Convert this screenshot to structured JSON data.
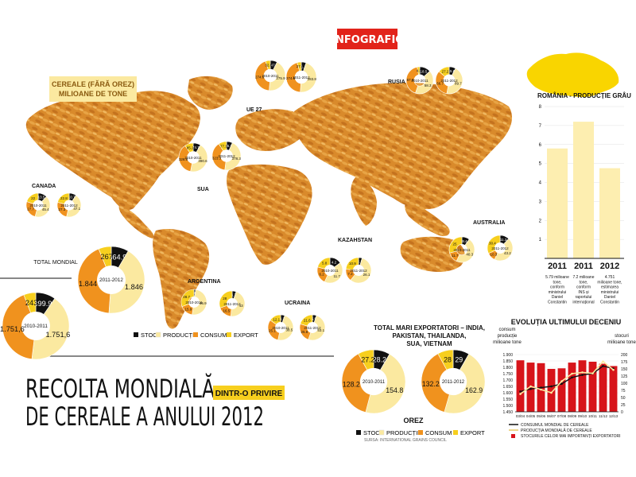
{
  "header": {
    "badge": "INFOGRAFIC",
    "map_title_1": "CEREALE (FĂRĂ OREZ)",
    "map_title_2": "MILIOANE DE TONE",
    "main_title_1": "RECOLTA MONDIALĂ",
    "main_title_2": "DE CEREALE A ANULUI 2012",
    "subtitle_badge": "DINTR-O PRIVIRE",
    "source": "SURSA: INTERNATIONAL GRAINS COUNCIL"
  },
  "legend": {
    "stoc": "STOC",
    "productie": "PRODUCȚIE",
    "consum": "CONSUM",
    "export": "EXPORT"
  },
  "colors": {
    "stoc": "#111111",
    "productie": "#fbe9a0",
    "consum": "#f0921e",
    "export": "#f7cf1e",
    "badge_red": "#e2231a",
    "romania_yellow": "#f9d500",
    "bar_fill": "#fdeeb0",
    "decade_bar": "#d7141a",
    "decade_line_consum": "#111111",
    "decade_line_productie": "#fbe9a0",
    "decade_line_stoc": "#f0a81e"
  },
  "chart_data": [
    {
      "type": "pie",
      "title": "TOTAL MONDIAL",
      "charts": [
        {
          "period": "2010-2011",
          "slices": [
            {
              "key": "stoc",
              "value": 399.9,
              "label": "399.9"
            },
            {
              "key": "productie",
              "value": 1751.6,
              "label": "1.751,6"
            },
            {
              "key": "consum",
              "value": 1751.6,
              "label": "1.751,6"
            },
            {
              "key": "export",
              "value": 243,
              "label": "243"
            }
          ]
        },
        {
          "period": "2011-2012",
          "slices": [
            {
              "key": "stoc",
              "value": 364.9,
              "label": "364.9"
            },
            {
              "key": "productie",
              "value": 1846,
              "label": "1.846"
            },
            {
              "key": "consum",
              "value": 1844,
              "label": "1.844"
            },
            {
              "key": "export",
              "value": 267,
              "label": "267"
            }
          ]
        }
      ]
    },
    {
      "type": "pie",
      "title": "CANADA",
      "charts": [
        {
          "period": "2010-2011",
          "slices": [
            {
              "key": "stoc",
              "value": 13.5,
              "label": "13.5"
            },
            {
              "key": "productie",
              "value": 45.4,
              "label": "45.4"
            },
            {
              "key": "consum",
              "value": 27.7,
              "label": "27.7"
            },
            {
              "key": "export",
              "value": 22,
              "label": "22"
            }
          ]
        },
        {
          "period": "2011-2012",
          "slices": [
            {
              "key": "stoc",
              "value": 10.7,
              "label": "10.7"
            },
            {
              "key": "productie",
              "value": 47.1,
              "label": "47.1"
            },
            {
              "key": "consum",
              "value": 27.3,
              "label": "27.3"
            },
            {
              "key": "export",
              "value": 22.8,
              "label": "22.8"
            }
          ]
        }
      ]
    },
    {
      "type": "pie",
      "title": "SUA",
      "charts": [
        {
          "period": "2010-2011",
          "slices": [
            {
              "key": "stoc",
              "value": 74.7,
              "label": "74.7"
            },
            {
              "key": "productie",
              "value": 390.6,
              "label": "390.6"
            },
            {
              "key": "consum",
              "value": 326.8,
              "label": "326.8"
            },
            {
              "key": "export",
              "value": 85.2,
              "label": "85.2"
            }
          ]
        },
        {
          "period": "2011-2012",
          "slices": [
            {
              "key": "stoc",
              "value": 55.7,
              "label": "55.7"
            },
            {
              "key": "productie",
              "value": 378.3,
              "label": "378.3"
            },
            {
              "key": "consum",
              "value": 323.3,
              "label": "323.3"
            },
            {
              "key": "export",
              "value": 77.1,
              "label": "77.1"
            }
          ]
        }
      ]
    },
    {
      "type": "pie",
      "title": "UE 27",
      "charts": [
        {
          "period": "2010-2011",
          "slices": [
            {
              "key": "stoc",
              "value": 47,
              "label": "47"
            },
            {
              "key": "productie",
              "value": 275.9,
              "label": "275.9"
            },
            {
              "key": "consum",
              "value": 274.6,
              "label": "274.6"
            },
            {
              "key": "export",
              "value": 32.8,
              "label": "32.8"
            }
          ]
        },
        {
          "period": "2011-2012",
          "slices": [
            {
              "key": "stoc",
              "value": 31.7,
              "label": "31.7"
            },
            {
              "key": "productie",
              "value": 283.8,
              "label": "283.8"
            },
            {
              "key": "consum",
              "value": 274.5,
              "label": "274.5"
            },
            {
              "key": "export",
              "value": 27.4,
              "label": "27.4"
            }
          ]
        }
      ]
    },
    {
      "type": "pie",
      "title": "RUSIA",
      "charts": [
        {
          "period": "2010-2011",
          "slices": [
            {
              "key": "stoc",
              "value": 18.5,
              "label": "18.5"
            },
            {
              "key": "productie",
              "value": 58.3,
              "label": "58.3"
            },
            {
              "key": "consum",
              "value": 57.9,
              "label": "57.9"
            },
            {
              "key": "export",
              "value": 4.3,
              "label": "4.3"
            }
          ]
        },
        {
          "period": "2011-2012",
          "slices": [
            {
              "key": "stoc",
              "value": 15.6,
              "label": "15.6"
            },
            {
              "key": "productie",
              "value": 89.7,
              "label": "89.7"
            },
            {
              "key": "consum",
              "value": 66.7,
              "label": "66.7"
            },
            {
              "key": "export",
              "value": 27.2,
              "label": "27.2"
            }
          ]
        }
      ]
    },
    {
      "type": "pie",
      "title": "ARGENTINA",
      "charts": [
        {
          "period": "2010-2011",
          "slices": [
            {
              "key": "stoc",
              "value": 2,
              "label": "2"
            },
            {
              "key": "productie",
              "value": 46.9,
              "label": "46.9"
            },
            {
              "key": "consum",
              "value": 15.9,
              "label": "15.9"
            },
            {
              "key": "export",
              "value": 28.7,
              "label": "28.7"
            }
          ]
        },
        {
          "period": "2011-2012",
          "slices": [
            {
              "key": "stoc",
              "value": 4.7,
              "label": "4.7"
            },
            {
              "key": "productie",
              "value": 43,
              "label": "43"
            },
            {
              "key": "consum",
              "value": 16.5,
              "label": "16.5"
            },
            {
              "key": "export",
              "value": 28,
              "label": "28"
            }
          ]
        }
      ]
    },
    {
      "type": "pie",
      "title": "UCRAINA",
      "charts": [
        {
          "period": "2010-2011",
          "slices": [
            {
              "key": "stoc",
              "value": 4.2,
              "label": "4.2"
            },
            {
              "key": "productie",
              "value": 38.5,
              "label": "38.5"
            },
            {
              "key": "consum",
              "value": 25.1,
              "label": "25.1"
            },
            {
              "key": "export",
              "value": 12.1,
              "label": "12.1"
            }
          ]
        },
        {
          "period": "2011-2012",
          "slices": [
            {
              "key": "stoc",
              "value": 5.5,
              "label": "5.5"
            },
            {
              "key": "productie",
              "value": 53.1,
              "label": "53.1"
            },
            {
              "key": "consum",
              "value": 25.8,
              "label": "25.8"
            },
            {
              "key": "export",
              "value": 21.6,
              "label": "21.6"
            }
          ]
        }
      ]
    },
    {
      "type": "pie",
      "title": "KAZAHSTAN",
      "charts": [
        {
          "period": "2010-2011",
          "slices": [
            {
              "key": "stoc",
              "value": 4.2,
              "label": "4.2"
            },
            {
              "key": "productie",
              "value": 11.7,
              "label": "11.7"
            },
            {
              "key": "consum",
              "value": 6.2,
              "label": "6.2"
            },
            {
              "key": "export",
              "value": 5.8,
              "label": "5.8"
            }
          ]
        },
        {
          "period": "2011-2012",
          "slices": [
            {
              "key": "stoc",
              "value": 2.1,
              "label": "2.1"
            },
            {
              "key": "productie",
              "value": 26.1,
              "label": "26.1"
            },
            {
              "key": "consum",
              "value": 7.2,
              "label": "7.2"
            },
            {
              "key": "export",
              "value": 10.9,
              "label": "10.9"
            }
          ]
        }
      ]
    },
    {
      "type": "pie",
      "title": "AUSTRALIA",
      "charts": [
        {
          "period": "2010-2011",
          "slices": [
            {
              "key": "stoc",
              "value": 8.4,
              "label": "8.4"
            },
            {
              "key": "productie",
              "value": 40.3,
              "label": "40.3"
            },
            {
              "key": "consum",
              "value": 11.7,
              "label": "11.7"
            },
            {
              "key": "export",
              "value": 25,
              "label": "25"
            }
          ]
        },
        {
          "period": "2011-2012",
          "slices": [
            {
              "key": "stoc",
              "value": 11.3,
              "label": "11.3"
            },
            {
              "key": "productie",
              "value": 43.2,
              "label": "43.2"
            },
            {
              "key": "consum",
              "value": 10.3,
              "label": "10.3"
            },
            {
              "key": "export",
              "value": 30.4,
              "label": "30.4"
            }
          ]
        }
      ]
    },
    {
      "type": "pie",
      "title": "TOTAL MARI EXPORTATORI – INDIA, PAKISTAN, THAILANDA, SUA, VIETNAM",
      "subtitle": "OREZ",
      "charts": [
        {
          "period": "2010-2011",
          "slices": [
            {
              "key": "stoc",
              "value": 28.2,
              "label": "28.2"
            },
            {
              "key": "productie",
              "value": 154.8,
              "label": "154.8"
            },
            {
              "key": "consum",
              "value": 128.2,
              "label": "128.2"
            },
            {
              "key": "export",
              "value": 27.2,
              "label": "27.2"
            }
          ]
        },
        {
          "period": "2011-2012",
          "slices": [
            {
              "key": "stoc",
              "value": 29,
              "label": "29"
            },
            {
              "key": "productie",
              "value": 162.9,
              "label": "162.9"
            },
            {
              "key": "consum",
              "value": 132.2,
              "label": "132.2"
            },
            {
              "key": "export",
              "value": 28,
              "label": "28"
            }
          ]
        }
      ]
    },
    {
      "type": "bar",
      "title": "ROMÂNIA - PRODUCȚIE GRÂU",
      "categories": [
        "2011",
        "2011",
        "2012"
      ],
      "values": [
        5.79,
        7.2,
        4.751
      ],
      "ylim": [
        0,
        8
      ],
      "yticks": [
        "1",
        "2",
        "3",
        "4",
        "5",
        "6",
        "7",
        "8"
      ],
      "notes": [
        "5.79 milioane tone, conform ministrului Daniel Constantin",
        "7.2 milioane tone, conform INS și raportului internațional",
        "4.751 milioane tone, estimarea ministrului Daniel Constantin"
      ]
    },
    {
      "type": "bar",
      "title": "EVOLUȚIA ULTIMULUI DECENIU",
      "ylabel_left": "consum producție milioane tone",
      "ylabel_right": "stocuri milioane tone",
      "categories": [
        "03/04",
        "04/05",
        "05/06",
        "06/07",
        "07/08",
        "08/09",
        "09/10",
        "10/11",
        "11/12",
        "12/13"
      ],
      "series": [
        {
          "name": "STOCURILE CELOR MAI IMPORTANȚI EXPORTATORI",
          "axis": "right",
          "values": [
            180,
            172,
            170,
            150,
            152,
            172,
            180,
            175,
            168,
            160
          ]
        },
        {
          "name": "CONSUMUL MONDIAL DE CEREALE",
          "axis": "left",
          "values": [
            1610,
            1630,
            1640,
            1650,
            1670,
            1720,
            1740,
            1750,
            1810,
            1790
          ]
        },
        {
          "name": "PRODUCȚIA MONDIALĂ DE CEREALE",
          "axis": "left",
          "values": [
            1590,
            1650,
            1625,
            1600,
            1690,
            1750,
            1760,
            1752,
            1846,
            1780
          ]
        }
      ],
      "ylim_left": [
        1450,
        1900
      ],
      "ylim_right": [
        0,
        200
      ],
      "yticks_left": [
        "1.450",
        "1.500",
        "1.550",
        "1.600",
        "1.650",
        "1.700",
        "1.750",
        "1.800",
        "1.850",
        "1.900"
      ],
      "yticks_right": [
        "0",
        "25",
        "50",
        "75",
        "100",
        "125",
        "150",
        "175",
        "200"
      ]
    }
  ],
  "romania": {
    "title": "ROMÂNIA - PRODUCȚIE GRÂU",
    "notes": [
      [
        "5.79 milioane",
        "tone,",
        "conform",
        "ministrului",
        "Daniel",
        "Constantin"
      ],
      [
        "7.2 milioane",
        "tone,",
        "conform",
        "INS și",
        "raportului",
        "internațional"
      ],
      [
        "4.751",
        "milioane tone,",
        "estimarea",
        "ministrului",
        "Daniel",
        "Constantin"
      ]
    ]
  },
  "decade": {
    "title": "EVOLUȚIA ULTIMULUI DECENIU",
    "left_label": [
      "consum",
      "producție",
      "milioane tone"
    ],
    "right_label": [
      "stocuri",
      "milioane tone"
    ],
    "legend": [
      "CONSUMUL MONDIAL DE CEREALE",
      "PRODUCȚIA MONDIALĂ DE CEREALE",
      "STOCURILE CELOR MAI IMPORTANȚI EXPORTATORI"
    ]
  },
  "rice": {
    "title_lines": [
      "TOTAL MARI EXPORTATORI – INDIA,",
      "PAKISTAN, THAILANDA,",
      "SUA, VIETNAM"
    ],
    "label": "OREZ"
  }
}
